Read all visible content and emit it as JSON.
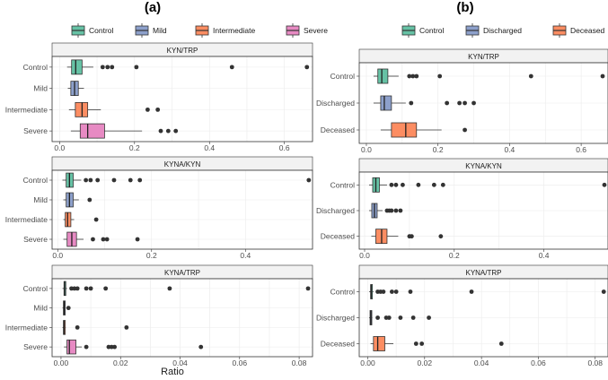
{
  "figure": {
    "panel_a_label": "(a)",
    "panel_b_label": "(b)",
    "xlabel": "Ratio"
  },
  "chart_data": [
    {
      "type": "boxplot",
      "panel": "a",
      "title": "(a)",
      "xlabel": "Ratio",
      "legend": {
        "placement": "top",
        "entries": [
          {
            "name": "Control",
            "color": "#66c2a5"
          },
          {
            "name": "Mild",
            "color": "#8da0cb"
          },
          {
            "name": "Intermediate",
            "color": "#fc8d62"
          },
          {
            "name": "Severe",
            "color": "#e78ac3"
          }
        ]
      },
      "facets": [
        {
          "title": "KYN/TRP",
          "xlim": [
            -0.02,
            0.675
          ],
          "xticks": [
            0.0,
            0.2,
            0.4,
            0.6
          ],
          "tick_labels": [
            "0.0",
            "0.2",
            "0.4",
            "0.6"
          ],
          "groups": [
            {
              "label": "Control",
              "color": "#66c2a5",
              "whisker_low": 0.02,
              "q1": 0.032,
              "median": 0.043,
              "q3": 0.06,
              "whisker_high": 0.09,
              "outliers": [
                0.115,
                0.128,
                0.14,
                0.205,
                0.46,
                0.66
              ]
            },
            {
              "label": "Mild",
              "color": "#8da0cb",
              "whisker_low": 0.022,
              "q1": 0.03,
              "median": 0.04,
              "q3": 0.05,
              "whisker_high": 0.065,
              "outliers": []
            },
            {
              "label": "Intermediate",
              "color": "#fc8d62",
              "whisker_low": 0.025,
              "q1": 0.042,
              "median": 0.06,
              "q3": 0.075,
              "whisker_high": 0.11,
              "outliers": [
                0.235,
                0.262
              ]
            },
            {
              "label": "Severe",
              "color": "#e78ac3",
              "whisker_low": 0.03,
              "q1": 0.055,
              "median": 0.075,
              "q3": 0.12,
              "whisker_high": 0.22,
              "outliers": [
                0.27,
                0.29,
                0.31
              ]
            }
          ]
        },
        {
          "title": "KYNA/KYN",
          "xlim": [
            -0.012,
            0.543
          ],
          "xticks": [
            0.0,
            0.2,
            0.4
          ],
          "tick_labels": [
            "0.0",
            "0.2",
            "0.4"
          ],
          "groups": [
            {
              "label": "Control",
              "color": "#66c2a5",
              "whisker_low": 0.01,
              "q1": 0.018,
              "median": 0.025,
              "q3": 0.033,
              "whisker_high": 0.05,
              "outliers": [
                0.06,
                0.07,
                0.085,
                0.12,
                0.155,
                0.175,
                0.535
              ]
            },
            {
              "label": "Mild",
              "color": "#8da0cb",
              "whisker_low": 0.012,
              "q1": 0.018,
              "median": 0.025,
              "q3": 0.033,
              "whisker_high": 0.045,
              "outliers": [
                0.068
              ]
            },
            {
              "label": "Intermediate",
              "color": "#fc8d62",
              "whisker_low": 0.012,
              "q1": 0.016,
              "median": 0.021,
              "q3": 0.028,
              "whisker_high": 0.035,
              "outliers": [
                0.082
              ]
            },
            {
              "label": "Severe",
              "color": "#e78ac3",
              "whisker_low": 0.012,
              "q1": 0.02,
              "median": 0.03,
              "q3": 0.04,
              "whisker_high": 0.055,
              "outliers": [
                0.075,
                0.097,
                0.105,
                0.17
              ]
            }
          ]
        },
        {
          "title": "KYNA/TRP",
          "xlim": [
            -0.003,
            0.0845
          ],
          "xticks": [
            0.0,
            0.02,
            0.04,
            0.06,
            0.08
          ],
          "tick_labels": [
            "0.00",
            "0.02",
            "0.04",
            "0.06",
            "0.08"
          ],
          "groups": [
            {
              "label": "Control",
              "color": "#66c2a5",
              "whisker_low": 0.0005,
              "q1": 0.001,
              "median": 0.0012,
              "q3": 0.0016,
              "whisker_high": 0.002,
              "outliers": [
                0.0035,
                0.0045,
                0.0055,
                0.0085,
                0.01,
                0.015,
                0.0365,
                0.083
              ]
            },
            {
              "label": "Mild",
              "color": "#8da0cb",
              "whisker_low": 0.0005,
              "q1": 0.0008,
              "median": 0.0011,
              "q3": 0.0013,
              "whisker_high": 0.0016,
              "outliers": [
                0.0025
              ]
            },
            {
              "label": "Intermediate",
              "color": "#fc8d62",
              "whisker_low": 0.0005,
              "q1": 0.0008,
              "median": 0.001,
              "q3": 0.0013,
              "whisker_high": 0.0016,
              "outliers": [
                0.0055,
                0.022
              ]
            },
            {
              "label": "Severe",
              "color": "#e78ac3",
              "whisker_low": 0.001,
              "q1": 0.002,
              "median": 0.0028,
              "q3": 0.005,
              "whisker_high": 0.007,
              "outliers": [
                0.0085,
                0.016,
                0.017,
                0.018,
                0.047
              ]
            }
          ]
        }
      ]
    },
    {
      "type": "boxplot",
      "panel": "b",
      "title": "(b)",
      "xlabel": "",
      "legend": {
        "placement": "top",
        "entries": [
          {
            "name": "Control",
            "color": "#66c2a5"
          },
          {
            "name": "Discharged",
            "color": "#8da0cb"
          },
          {
            "name": "Deceased",
            "color": "#fc8d62"
          }
        ]
      },
      "facets": [
        {
          "title": "KYN/TRP",
          "xlim": [
            -0.02,
            0.675
          ],
          "xticks": [
            0.0,
            0.2,
            0.4,
            0.6
          ],
          "tick_labels": [
            "0.0",
            "0.2",
            "0.4",
            "0.6"
          ],
          "groups": [
            {
              "label": "Control",
              "color": "#66c2a5",
              "whisker_low": 0.02,
              "q1": 0.032,
              "median": 0.043,
              "q3": 0.06,
              "whisker_high": 0.09,
              "outliers": [
                0.12,
                0.13,
                0.14,
                0.205,
                0.46,
                0.66
              ]
            },
            {
              "label": "Discharged",
              "color": "#8da0cb",
              "whisker_low": 0.02,
              "q1": 0.04,
              "median": 0.05,
              "q3": 0.07,
              "whisker_high": 0.11,
              "outliers": [
                0.125,
                0.225,
                0.26,
                0.275,
                0.3
              ]
            },
            {
              "label": "Deceased",
              "color": "#fc8d62",
              "whisker_low": 0.04,
              "q1": 0.07,
              "median": 0.11,
              "q3": 0.14,
              "whisker_high": 0.21,
              "outliers": [
                0.275
              ]
            }
          ]
        },
        {
          "title": "KYNA/KYN",
          "xlim": [
            -0.012,
            0.543
          ],
          "xticks": [
            0.0,
            0.2,
            0.4
          ],
          "tick_labels": [
            "0.0",
            "0.2",
            "0.4"
          ],
          "groups": [
            {
              "label": "Control",
              "color": "#66c2a5",
              "whisker_low": 0.01,
              "q1": 0.018,
              "median": 0.025,
              "q3": 0.033,
              "whisker_high": 0.05,
              "outliers": [
                0.06,
                0.07,
                0.085,
                0.12,
                0.155,
                0.175,
                0.535
              ]
            },
            {
              "label": "Discharged",
              "color": "#8da0cb",
              "whisker_low": 0.01,
              "q1": 0.016,
              "median": 0.022,
              "q3": 0.028,
              "whisker_high": 0.04,
              "outliers": [
                0.05,
                0.055,
                0.06,
                0.07,
                0.08
              ]
            },
            {
              "label": "Deceased",
              "color": "#fc8d62",
              "whisker_low": 0.015,
              "q1": 0.025,
              "median": 0.038,
              "q3": 0.05,
              "whisker_high": 0.075,
              "outliers": [
                0.1,
                0.105,
                0.17
              ]
            }
          ]
        },
        {
          "title": "KYNA/TRP",
          "xlim": [
            -0.003,
            0.0845
          ],
          "xticks": [
            0.0,
            0.02,
            0.04,
            0.06,
            0.08
          ],
          "tick_labels": [
            "0.00",
            "0.02",
            "0.04",
            "0.06",
            "0.08"
          ],
          "groups": [
            {
              "label": "Control",
              "color": "#66c2a5",
              "whisker_low": 0.0005,
              "q1": 0.001,
              "median": 0.0012,
              "q3": 0.0016,
              "whisker_high": 0.002,
              "outliers": [
                0.0035,
                0.0045,
                0.0055,
                0.0085,
                0.01,
                0.015,
                0.0365,
                0.083
              ]
            },
            {
              "label": "Discharged",
              "color": "#8da0cb",
              "whisker_low": 0.0005,
              "q1": 0.0008,
              "median": 0.0011,
              "q3": 0.0013,
              "whisker_high": 0.0016,
              "outliers": [
                0.0035,
                0.0065,
                0.0075,
                0.0115,
                0.016,
                0.0215
              ]
            },
            {
              "label": "Deceased",
              "color": "#fc8d62",
              "whisker_low": 0.001,
              "q1": 0.002,
              "median": 0.0035,
              "q3": 0.006,
              "whisker_high": 0.009,
              "outliers": [
                0.017,
                0.019,
                0.047
              ]
            }
          ]
        }
      ]
    }
  ]
}
